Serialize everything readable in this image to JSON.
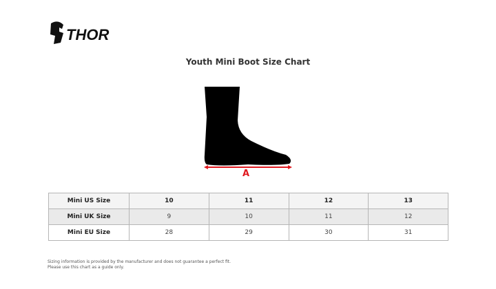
{
  "brand": {
    "name": "THOR"
  },
  "title": "Youth Mini Boot Size Chart",
  "diagram": {
    "measure_label": "A",
    "accent": "#e0191f"
  },
  "table": {
    "rows": [
      {
        "label": "Mini US Size",
        "values": [
          "10",
          "11",
          "12",
          "13"
        ]
      },
      {
        "label": "Mini UK Size",
        "values": [
          "9",
          "10",
          "11",
          "12"
        ]
      },
      {
        "label": "Mini EU Size",
        "values": [
          "28",
          "29",
          "30",
          "31"
        ]
      }
    ]
  },
  "note": {
    "line1": "Sizing information is provided by the manufacturer and does not guarantee a perfect fit.",
    "line2": "Please use this chart as a guide only."
  }
}
